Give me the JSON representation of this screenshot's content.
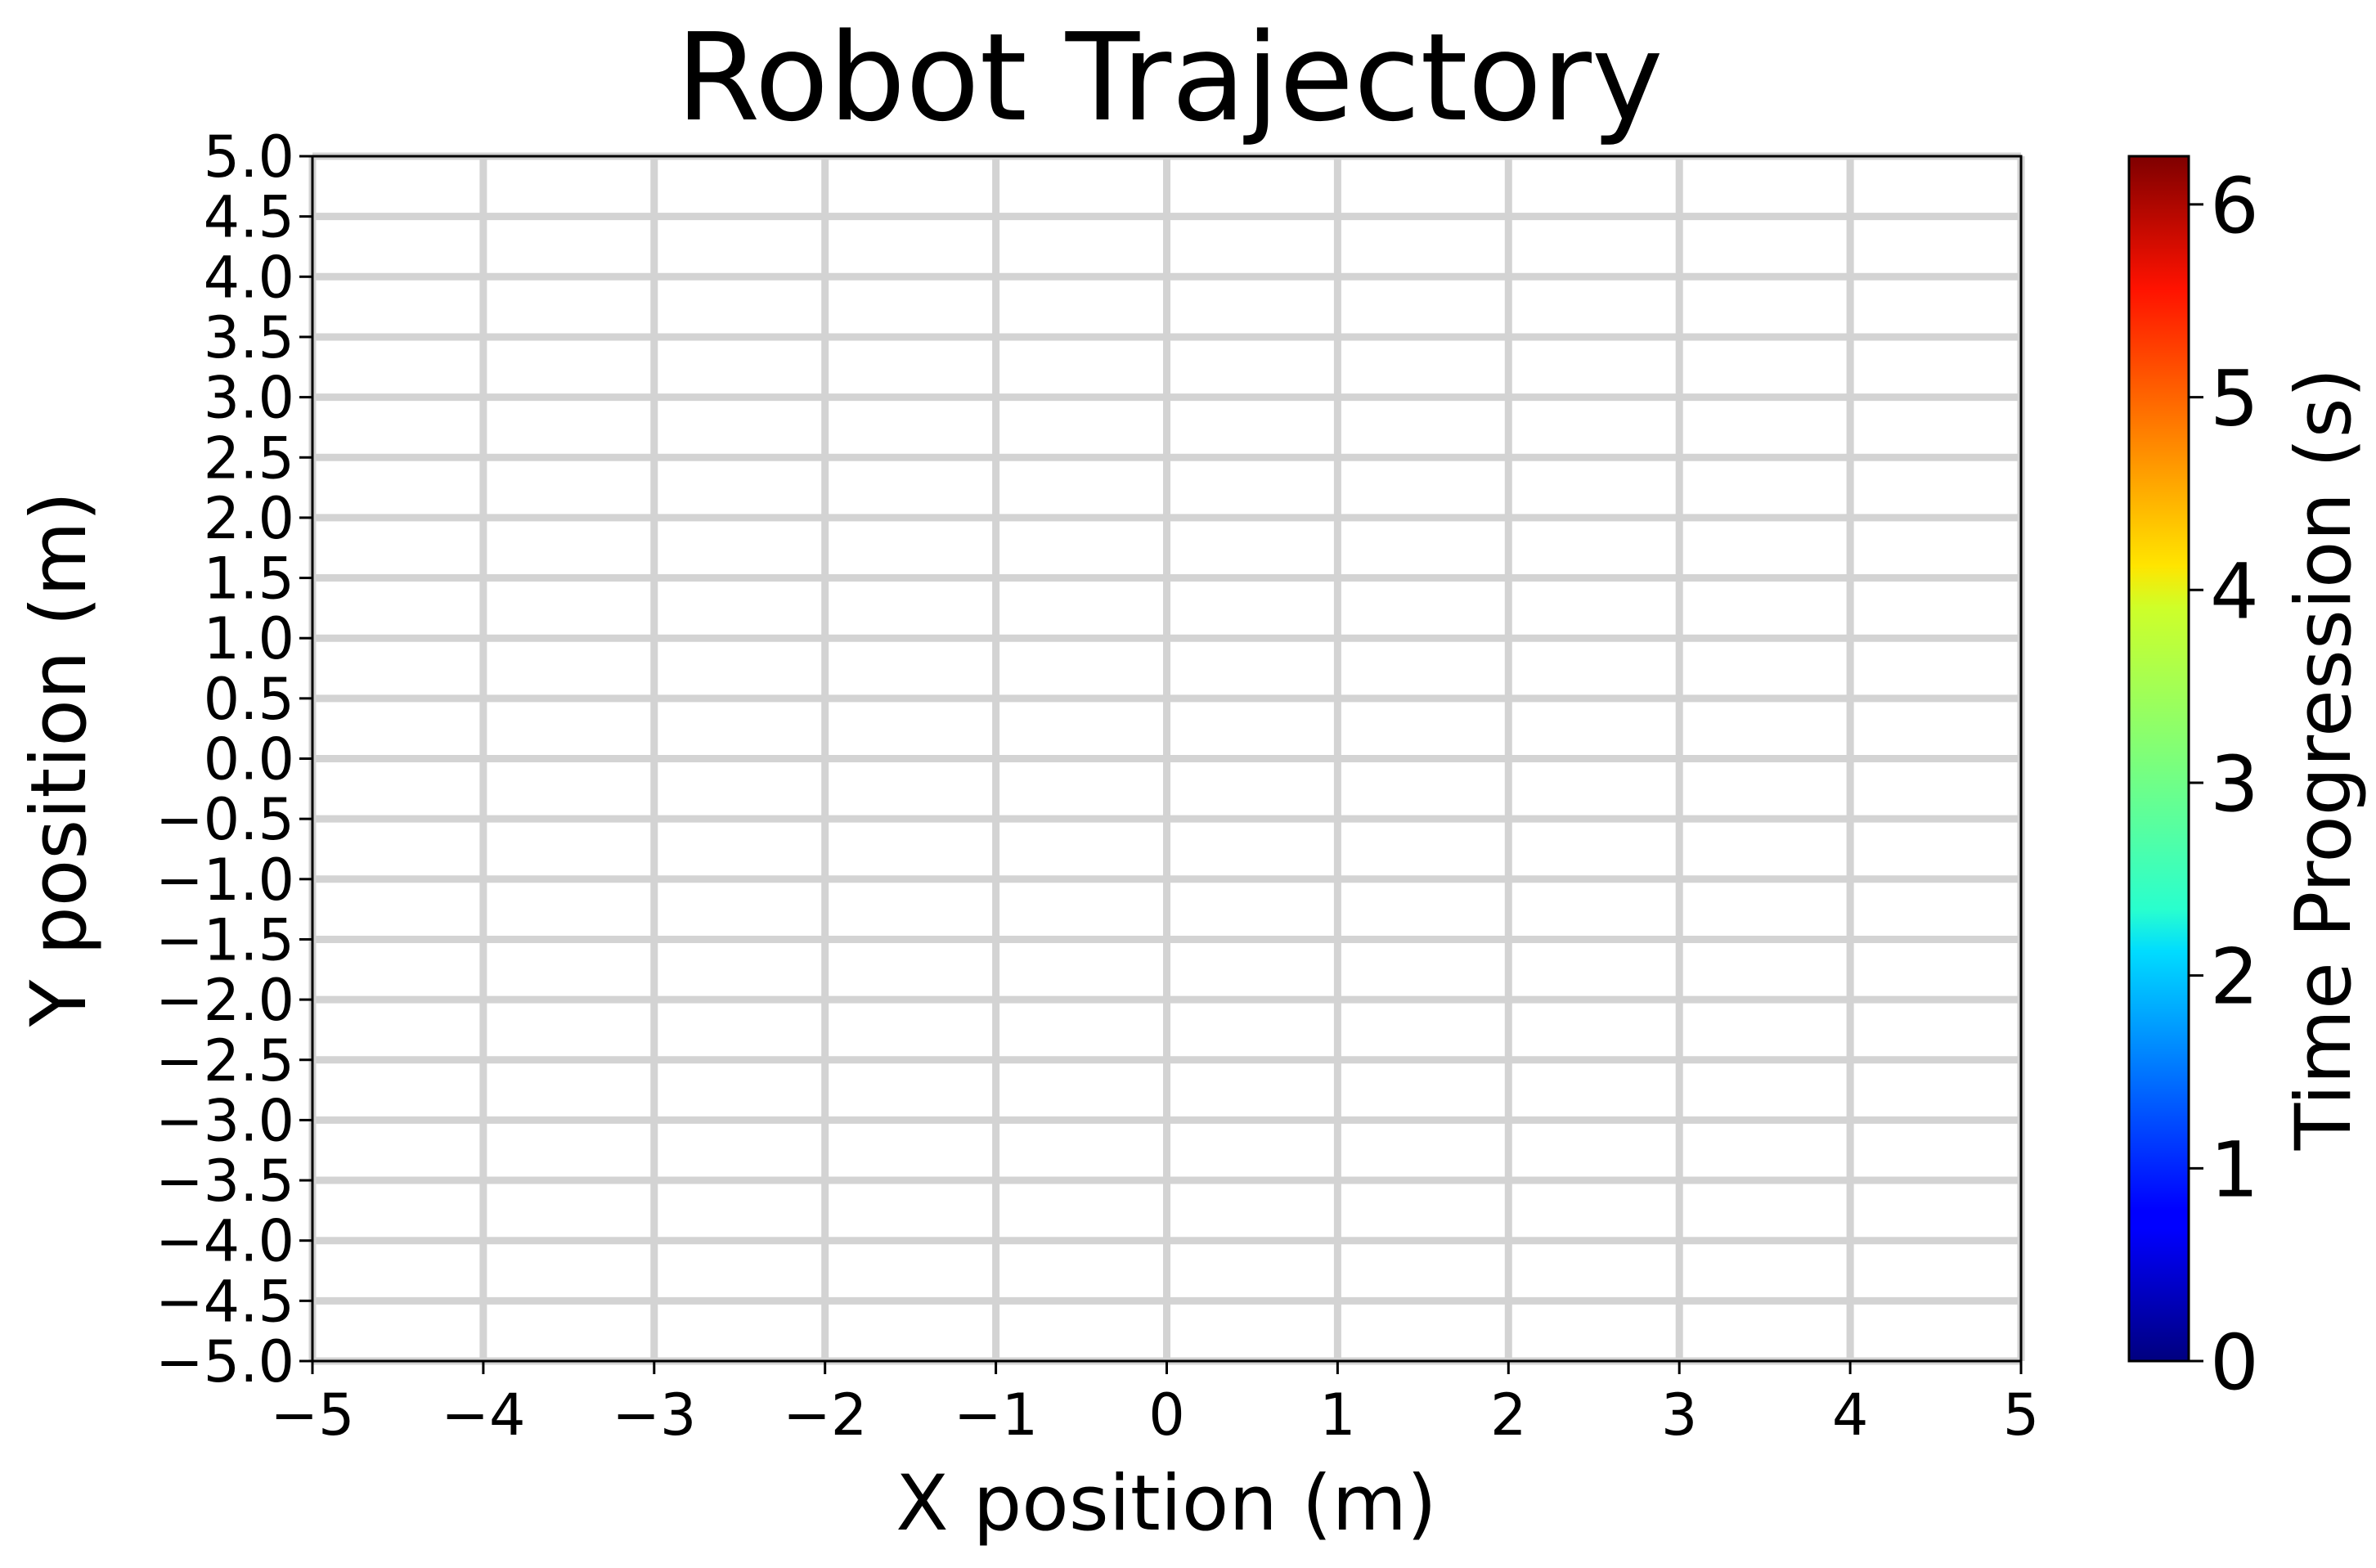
{
  "chart_data": {
    "type": "scatter",
    "title": "Robot Trajectory",
    "xlabel": "X position (m)",
    "ylabel": "Y position (m)",
    "xlim": [
      -5,
      5
    ],
    "ylim": [
      -5,
      5
    ],
    "x_ticks": [
      "−5",
      "−4",
      "−3",
      "−2",
      "−1",
      "0",
      "1",
      "2",
      "3",
      "4",
      "5"
    ],
    "y_ticks": [
      "−5.0",
      "−4.5",
      "−4.0",
      "−3.5",
      "−3.0",
      "−2.5",
      "−2.0",
      "−1.5",
      "−1.0",
      "−0.5",
      "0.0",
      "0.5",
      "1.0",
      "1.5",
      "2.0",
      "2.5",
      "3.0",
      "3.5",
      "4.0",
      "4.5",
      "5.0"
    ],
    "grid": true,
    "series": [],
    "colorbar": {
      "label": "Time Progression (s)",
      "colormap": "jet",
      "range": [
        0,
        6.25
      ],
      "ticks": [
        "0",
        "1",
        "2",
        "3",
        "4",
        "5",
        "6"
      ]
    },
    "colors": {
      "grid": "#d3d3d3",
      "axes": "#000000",
      "background": "#ffffff"
    }
  }
}
